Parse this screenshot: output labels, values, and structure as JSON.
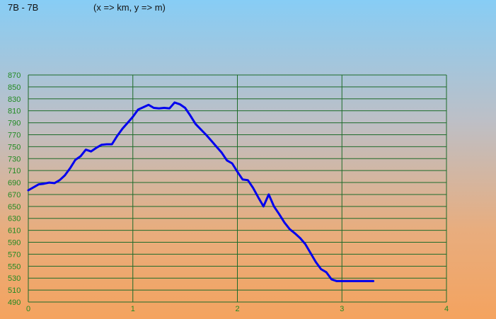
{
  "header": {
    "title": "7B - 7B",
    "units": "(x => km, y => m)"
  },
  "colors": {
    "grid": "#1e6b2a",
    "line": "#0000ee",
    "tick_text": "#228a22"
  },
  "chart_data": {
    "type": "line",
    "title": "7B - 7B",
    "subtitle": "(x => km, y => m)",
    "xlabel": "",
    "ylabel": "",
    "xlim": [
      0,
      4
    ],
    "ylim": [
      490,
      870
    ],
    "x_ticks": [
      "0",
      "1",
      "2",
      "3",
      "4"
    ],
    "y_ticks": [
      "490",
      "510",
      "530",
      "550",
      "570",
      "590",
      "610",
      "630",
      "650",
      "670",
      "690",
      "710",
      "730",
      "750",
      "770",
      "790",
      "810",
      "830",
      "850",
      "870"
    ],
    "grid": true,
    "series": [
      {
        "x": [
          0,
          0.05,
          0.1,
          0.15,
          0.2,
          0.25,
          0.3,
          0.35,
          0.4,
          0.45,
          0.5,
          0.55,
          0.6,
          0.65,
          0.7,
          0.75,
          0.8,
          0.85,
          0.9,
          0.95,
          1.0,
          1.05,
          1.1,
          1.15,
          1.2,
          1.25,
          1.3,
          1.35,
          1.4,
          1.45,
          1.5,
          1.55,
          1.6,
          1.65,
          1.7,
          1.75,
          1.8,
          1.85,
          1.9,
          1.95,
          2.0,
          2.05,
          2.1,
          2.15,
          2.2,
          2.25,
          2.3,
          2.35,
          2.4,
          2.45,
          2.5,
          2.55,
          2.6,
          2.65,
          2.7,
          2.75,
          2.8,
          2.85,
          2.9,
          2.95,
          3.0,
          3.05,
          3.1,
          3.15,
          3.2,
          3.25,
          3.3
        ],
        "values": [
          677,
          682,
          687,
          688,
          690,
          689,
          694,
          702,
          714,
          728,
          734,
          745,
          742,
          748,
          753,
          754,
          754,
          768,
          780,
          790,
          800,
          812,
          816,
          820,
          815,
          814,
          815,
          814,
          824,
          821,
          815,
          802,
          788,
          779,
          770,
          760,
          750,
          740,
          727,
          722,
          708,
          695,
          694,
          681,
          665,
          650,
          670,
          650,
          637,
          623,
          612,
          605,
          597,
          587,
          572,
          557,
          545,
          540,
          528,
          525,
          525,
          525,
          525,
          525,
          525,
          525,
          525
        ]
      }
    ]
  }
}
